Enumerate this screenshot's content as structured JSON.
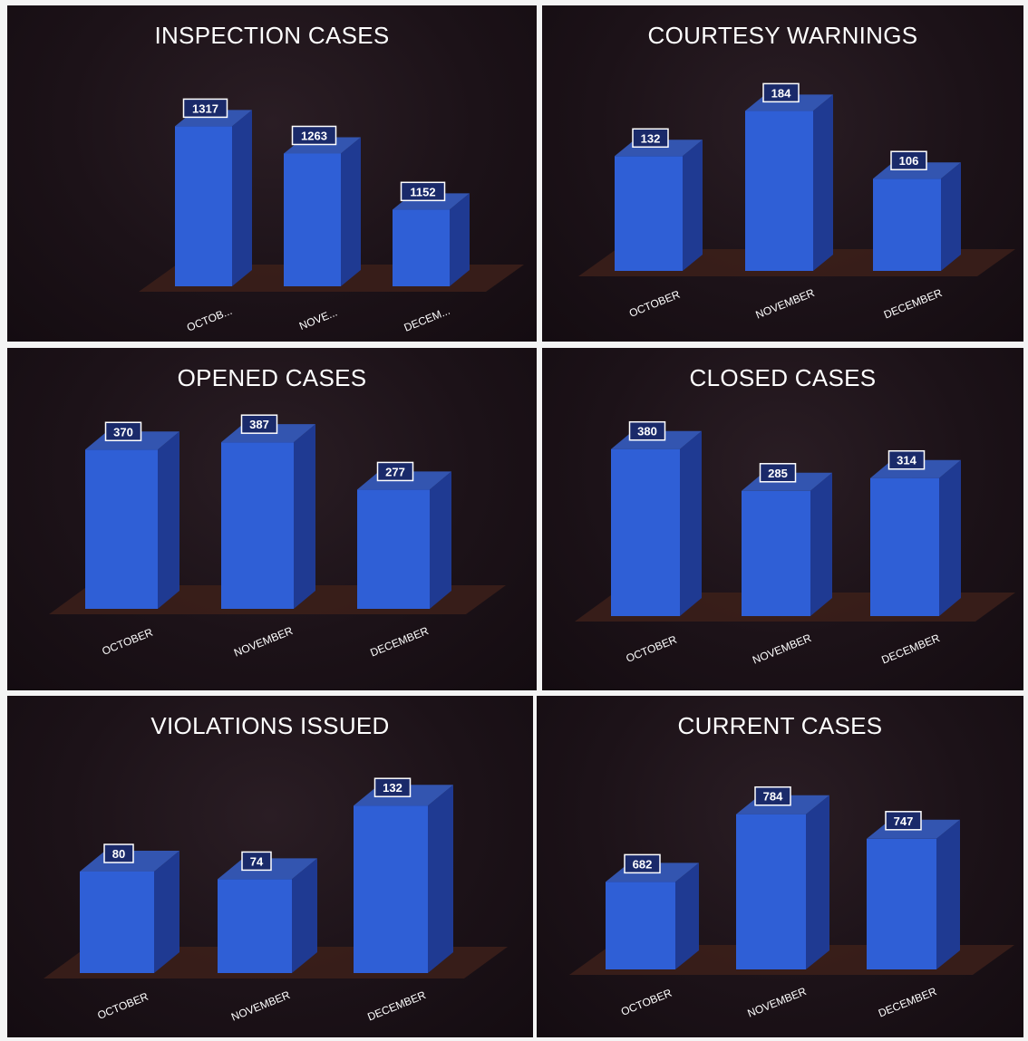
{
  "colors": {
    "bar_front": "#2f5fd6",
    "bar_side": "#1f3a92",
    "bar_top": "#3355b0",
    "floor": "#3b1f1a",
    "label_box": "#1a2a6a",
    "title": "#ffffff",
    "category_text": "#ffffff"
  },
  "chart_data": [
    {
      "type": "bar",
      "title": "INSPECTION CASES",
      "categories": [
        "OCTOB...",
        "NOVE...",
        "DECEM..."
      ],
      "values": [
        1317,
        1263,
        1152
      ],
      "ylim": [
        1000,
        1350
      ],
      "data_labels": [
        "1317",
        "1263",
        "1152"
      ],
      "grid": false,
      "legend": "none"
    },
    {
      "type": "bar",
      "title": "COURTESY WARNINGS",
      "categories": [
        "OCTOBER",
        "NOVEMBER",
        "DECEMBER"
      ],
      "values": [
        132,
        184,
        106
      ],
      "ylim": [
        0,
        200
      ],
      "data_labels": [
        "132",
        "184",
        "106"
      ],
      "grid": false,
      "legend": "none"
    },
    {
      "type": "bar",
      "title": "OPENED CASES",
      "categories": [
        "OCTOBER",
        "NOVEMBER",
        "DECEMBER"
      ],
      "values": [
        370,
        387,
        277
      ],
      "ylim": [
        0,
        400
      ],
      "data_labels": [
        "370",
        "387",
        "277"
      ],
      "grid": false,
      "legend": "none"
    },
    {
      "type": "bar",
      "title": "CLOSED CASES",
      "categories": [
        "OCTOBER",
        "NOVEMBER",
        "DECEMBER"
      ],
      "values": [
        380,
        285,
        314
      ],
      "ylim": [
        0,
        400
      ],
      "data_labels": [
        "380",
        "285",
        "314"
      ],
      "grid": false,
      "legend": "none"
    },
    {
      "type": "bar",
      "title": "VIOLATIONS ISSUED",
      "categories": [
        "OCTOBER",
        "NOVEMBER",
        "DECEMBER"
      ],
      "values": [
        80,
        74,
        132
      ],
      "ylim": [
        0,
        140
      ],
      "data_labels": [
        "80",
        "74",
        "132"
      ],
      "grid": false,
      "legend": "none"
    },
    {
      "type": "bar",
      "title": "CURRENT CASES",
      "categories": [
        "OCTOBER",
        "NOVEMBER",
        "DECEMBER"
      ],
      "values": [
        682,
        784,
        747
      ],
      "ylim": [
        550,
        800
      ],
      "data_labels": [
        "682",
        "784",
        "747"
      ],
      "grid": false,
      "legend": "none"
    }
  ]
}
